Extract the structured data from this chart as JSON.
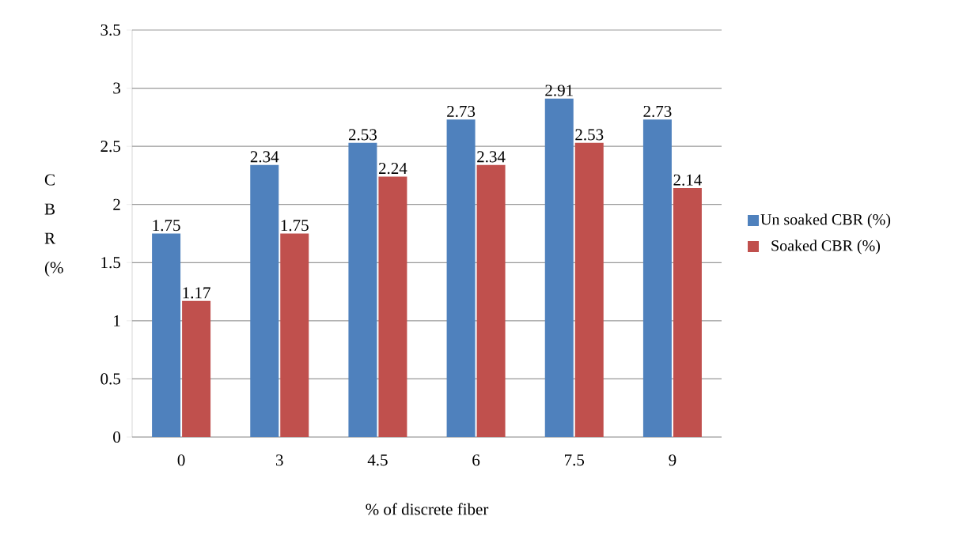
{
  "chart_data": {
    "type": "bar",
    "categories": [
      "0",
      "3",
      "4.5",
      "6",
      "7.5",
      "9"
    ],
    "series": [
      {
        "name": "Un soaked CBR (%)",
        "color": "#4f81bd",
        "values": [
          1.75,
          2.34,
          2.53,
          2.73,
          2.91,
          2.73
        ]
      },
      {
        "name": "Soaked CBR (%)",
        "color": "#c0504d",
        "values": [
          1.17,
          1.75,
          2.24,
          2.34,
          2.53,
          2.14
        ]
      }
    ],
    "xlabel": "% of discrete fiber",
    "ylabel": "C B R (%",
    "ylim": [
      0,
      3.5
    ],
    "yticks": [
      0,
      0.5,
      1,
      1.5,
      2,
      2.5,
      3,
      3.5
    ],
    "grid": "y",
    "legend": "right",
    "data_labels": true
  }
}
